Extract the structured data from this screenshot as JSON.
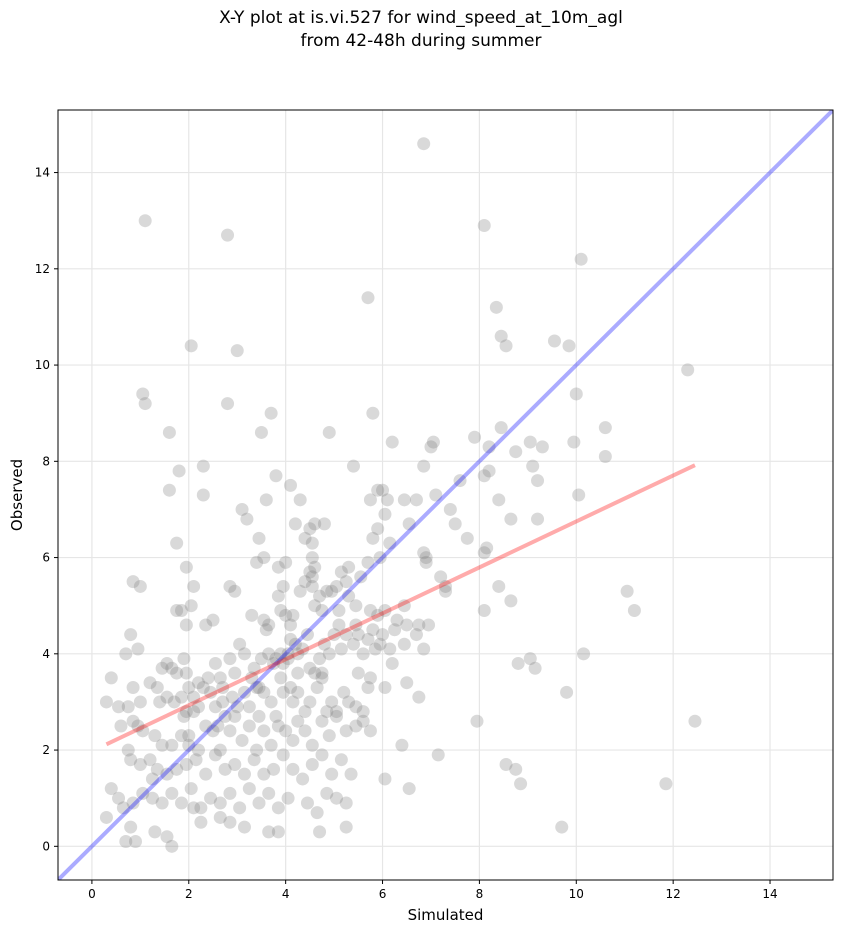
{
  "chart_data": {
    "type": "scatter",
    "title": "X-Y plot at is.vi.527 for wind_speed_at_10m_agl",
    "subtitle": "from 42-48h during summer",
    "xlabel": "Simulated",
    "ylabel": "Observed",
    "xlim": [
      -0.7,
      15.3
    ],
    "ylim": [
      -0.7,
      15.3
    ],
    "xticks": [
      0,
      2,
      4,
      6,
      8,
      10,
      12,
      14
    ],
    "yticks": [
      0,
      2,
      4,
      6,
      8,
      10,
      12,
      14
    ],
    "grid": true,
    "legend": "none",
    "colors": {
      "points": "#808080",
      "identity_line": "#0000ff",
      "regression_line": "#ff0000"
    },
    "identity_line": {
      "x": [
        -0.7,
        15.3
      ],
      "y": [
        -0.7,
        15.3
      ]
    },
    "regression_line": {
      "x": [
        0.3,
        12.45
      ],
      "y": [
        2.12,
        7.92
      ]
    },
    "points": [
      [
        1.1,
        13.0
      ],
      [
        2.8,
        12.7
      ],
      [
        6.85,
        14.6
      ],
      [
        8.1,
        12.9
      ],
      [
        10.1,
        12.2
      ],
      [
        5.7,
        11.4
      ],
      [
        8.35,
        11.2
      ],
      [
        8.45,
        10.6
      ],
      [
        8.55,
        10.4
      ],
      [
        9.55,
        10.5
      ],
      [
        9.85,
        10.4
      ],
      [
        2.05,
        10.4
      ],
      [
        3.0,
        10.3
      ],
      [
        1.05,
        9.4
      ],
      [
        1.1,
        9.2
      ],
      [
        2.8,
        9.2
      ],
      [
        3.7,
        9.0
      ],
      [
        5.8,
        9.0
      ],
      [
        10.0,
        9.4
      ],
      [
        12.3,
        9.9
      ],
      [
        1.6,
        8.6
      ],
      [
        3.5,
        8.6
      ],
      [
        4.9,
        8.6
      ],
      [
        6.2,
        8.4
      ],
      [
        7.0,
        8.3
      ],
      [
        7.05,
        8.4
      ],
      [
        7.9,
        8.5
      ],
      [
        8.2,
        8.3
      ],
      [
        8.45,
        8.7
      ],
      [
        8.75,
        8.2
      ],
      [
        9.05,
        8.4
      ],
      [
        9.3,
        8.3
      ],
      [
        9.95,
        8.4
      ],
      [
        10.6,
        8.7
      ],
      [
        10.6,
        8.1
      ],
      [
        1.8,
        7.8
      ],
      [
        2.3,
        7.9
      ],
      [
        3.8,
        7.7
      ],
      [
        5.4,
        7.9
      ],
      [
        6.85,
        7.9
      ],
      [
        8.1,
        7.7
      ],
      [
        8.2,
        7.8
      ],
      [
        9.1,
        7.9
      ],
      [
        9.2,
        7.6
      ],
      [
        7.6,
        7.6
      ],
      [
        1.6,
        7.4
      ],
      [
        3.6,
        7.2
      ],
      [
        4.1,
        7.5
      ],
      [
        4.3,
        7.2
      ],
      [
        5.75,
        7.2
      ],
      [
        5.9,
        7.4
      ],
      [
        6.0,
        7.4
      ],
      [
        6.1,
        7.2
      ],
      [
        6.45,
        7.2
      ],
      [
        6.7,
        7.2
      ],
      [
        7.1,
        7.3
      ],
      [
        7.4,
        7.0
      ],
      [
        8.4,
        7.2
      ],
      [
        10.05,
        7.3
      ],
      [
        2.3,
        7.3
      ],
      [
        3.1,
        7.0
      ],
      [
        3.2,
        6.8
      ],
      [
        4.2,
        6.7
      ],
      [
        4.5,
        6.6
      ],
      [
        4.6,
        6.7
      ],
      [
        4.8,
        6.7
      ],
      [
        4.4,
        6.4
      ],
      [
        4.55,
        6.3
      ],
      [
        5.9,
        6.6
      ],
      [
        6.05,
        6.9
      ],
      [
        6.55,
        6.7
      ],
      [
        7.5,
        6.7
      ],
      [
        8.65,
        6.8
      ],
      [
        9.2,
        6.8
      ],
      [
        7.75,
        6.4
      ],
      [
        1.75,
        6.3
      ],
      [
        3.45,
        6.4
      ],
      [
        3.55,
        6.0
      ],
      [
        3.4,
        5.9
      ],
      [
        4.0,
        5.9
      ],
      [
        4.55,
        6.0
      ],
      [
        4.6,
        5.8
      ],
      [
        5.3,
        5.8
      ],
      [
        5.55,
        5.6
      ],
      [
        5.7,
        5.9
      ],
      [
        5.95,
        6.0
      ],
      [
        5.8,
        6.4
      ],
      [
        6.85,
        6.1
      ],
      [
        6.9,
        6.0
      ],
      [
        6.9,
        5.9
      ],
      [
        7.2,
        5.6
      ],
      [
        7.3,
        5.4
      ],
      [
        7.3,
        5.3
      ],
      [
        8.15,
        6.2
      ],
      [
        8.1,
        6.1
      ],
      [
        8.4,
        5.4
      ],
      [
        8.65,
        5.1
      ],
      [
        8.1,
        4.9
      ],
      [
        11.05,
        5.3
      ],
      [
        11.2,
        4.9
      ],
      [
        0.85,
        5.5
      ],
      [
        1.0,
        5.4
      ],
      [
        1.95,
        5.8
      ],
      [
        2.1,
        5.4
      ],
      [
        2.05,
        5.0
      ],
      [
        1.75,
        4.9
      ],
      [
        1.85,
        4.9
      ],
      [
        1.95,
        4.6
      ],
      [
        2.35,
        4.6
      ],
      [
        2.5,
        4.7
      ],
      [
        2.85,
        5.4
      ],
      [
        2.95,
        5.3
      ],
      [
        3.3,
        4.8
      ],
      [
        3.55,
        4.7
      ],
      [
        3.65,
        4.6
      ],
      [
        3.85,
        5.8
      ],
      [
        3.85,
        5.2
      ],
      [
        3.9,
        4.9
      ],
      [
        3.95,
        5.4
      ],
      [
        4.1,
        4.6
      ],
      [
        4.0,
        4.8
      ],
      [
        4.15,
        4.8
      ],
      [
        4.3,
        5.3
      ],
      [
        4.4,
        5.5
      ],
      [
        4.5,
        5.7
      ],
      [
        4.55,
        5.6
      ],
      [
        4.55,
        5.4
      ],
      [
        4.7,
        5.2
      ],
      [
        4.75,
        4.9
      ],
      [
        4.85,
        5.3
      ],
      [
        4.95,
        5.3
      ],
      [
        5.05,
        5.4
      ],
      [
        5.15,
        5.7
      ],
      [
        5.25,
        5.5
      ],
      [
        5.3,
        5.2
      ],
      [
        5.45,
        5.0
      ],
      [
        5.45,
        4.6
      ],
      [
        5.75,
        4.9
      ],
      [
        5.9,
        4.8
      ],
      [
        6.05,
        4.9
      ],
      [
        6.3,
        4.7
      ],
      [
        6.45,
        5.0
      ],
      [
        6.5,
        4.6
      ],
      [
        6.75,
        4.6
      ],
      [
        6.95,
        4.6
      ],
      [
        0.8,
        4.4
      ],
      [
        0.7,
        4.0
      ],
      [
        0.95,
        4.1
      ],
      [
        1.45,
        3.7
      ],
      [
        1.55,
        3.8
      ],
      [
        1.65,
        3.7
      ],
      [
        1.75,
        3.6
      ],
      [
        1.9,
        3.9
      ],
      [
        1.95,
        3.6
      ],
      [
        2.0,
        3.3
      ],
      [
        2.2,
        3.4
      ],
      [
        2.4,
        3.5
      ],
      [
        2.3,
        3.3
      ],
      [
        2.55,
        3.8
      ],
      [
        2.65,
        3.5
      ],
      [
        2.7,
        3.3
      ],
      [
        2.85,
        3.9
      ],
      [
        2.95,
        3.6
      ],
      [
        3.05,
        4.2
      ],
      [
        3.15,
        4.0
      ],
      [
        3.3,
        3.5
      ],
      [
        3.4,
        3.3
      ],
      [
        3.5,
        3.9
      ],
      [
        3.6,
        4.5
      ],
      [
        3.65,
        4.0
      ],
      [
        3.75,
        3.8
      ],
      [
        3.8,
        3.9
      ],
      [
        3.9,
        4.0
      ],
      [
        3.95,
        3.8
      ],
      [
        4.05,
        4.0
      ],
      [
        4.1,
        4.3
      ],
      [
        4.2,
        4.2
      ],
      [
        4.25,
        4.0
      ],
      [
        4.35,
        4.1
      ],
      [
        4.45,
        4.4
      ],
      [
        4.5,
        3.7
      ],
      [
        4.6,
        3.6
      ],
      [
        4.7,
        3.9
      ],
      [
        4.75,
        3.6
      ],
      [
        4.8,
        4.2
      ],
      [
        4.9,
        4.0
      ],
      [
        5.0,
        4.4
      ],
      [
        5.1,
        4.6
      ],
      [
        5.15,
        4.1
      ],
      [
        5.25,
        4.4
      ],
      [
        5.4,
        4.2
      ],
      [
        5.5,
        4.4
      ],
      [
        5.6,
        4.0
      ],
      [
        5.7,
        4.3
      ],
      [
        5.8,
        4.5
      ],
      [
        5.85,
        4.1
      ],
      [
        5.95,
        4.2
      ],
      [
        6.0,
        4.4
      ],
      [
        6.15,
        4.1
      ],
      [
        6.25,
        4.5
      ],
      [
        6.45,
        4.2
      ],
      [
        6.7,
        4.4
      ],
      [
        6.85,
        4.1
      ],
      [
        1.35,
        3.3
      ],
      [
        1.4,
        3.0
      ],
      [
        1.55,
        3.1
      ],
      [
        1.7,
        3.0
      ],
      [
        1.85,
        3.1
      ],
      [
        1.95,
        2.8
      ],
      [
        1.9,
        2.7
      ],
      [
        2.1,
        2.8
      ],
      [
        2.2,
        2.9
      ],
      [
        2.45,
        3.2
      ],
      [
        2.55,
        2.9
      ],
      [
        2.7,
        3.0
      ],
      [
        2.75,
        2.7
      ],
      [
        2.9,
        3.1
      ],
      [
        3.0,
        2.9
      ],
      [
        3.15,
        3.2
      ],
      [
        3.25,
        2.9
      ],
      [
        3.45,
        3.3
      ],
      [
        3.55,
        3.2
      ],
      [
        3.7,
        3.0
      ],
      [
        3.8,
        2.7
      ],
      [
        3.9,
        3.5
      ],
      [
        3.95,
        3.2
      ],
      [
        4.1,
        3.3
      ],
      [
        4.15,
        3.0
      ],
      [
        4.25,
        3.2
      ],
      [
        4.4,
        2.8
      ],
      [
        4.5,
        3.0
      ],
      [
        4.65,
        3.3
      ],
      [
        4.75,
        3.5
      ],
      [
        4.85,
        2.8
      ],
      [
        4.95,
        3.0
      ],
      [
        5.05,
        2.8
      ],
      [
        5.2,
        3.2
      ],
      [
        5.3,
        3.0
      ],
      [
        5.45,
        2.9
      ],
      [
        5.6,
        2.8
      ],
      [
        5.7,
        3.3
      ],
      [
        5.75,
        3.5
      ],
      [
        6.05,
        3.3
      ],
      [
        6.5,
        3.4
      ],
      [
        6.75,
        3.1
      ],
      [
        0.3,
        3.0
      ],
      [
        0.4,
        3.5
      ],
      [
        0.55,
        2.9
      ],
      [
        0.75,
        2.9
      ],
      [
        0.85,
        3.3
      ],
      [
        1.0,
        3.0
      ],
      [
        1.2,
        3.4
      ],
      [
        0.6,
        2.5
      ],
      [
        0.85,
        2.6
      ],
      [
        0.95,
        2.5
      ],
      [
        1.05,
        2.4
      ],
      [
        1.3,
        2.3
      ],
      [
        1.45,
        2.1
      ],
      [
        1.65,
        2.1
      ],
      [
        1.85,
        2.3
      ],
      [
        2.0,
        2.1
      ],
      [
        2.2,
        2.0
      ],
      [
        2.35,
        2.5
      ],
      [
        2.5,
        2.4
      ],
      [
        2.65,
        2.0
      ],
      [
        2.85,
        2.4
      ],
      [
        2.95,
        2.7
      ],
      [
        3.1,
        2.2
      ],
      [
        3.25,
        2.5
      ],
      [
        3.4,
        2.0
      ],
      [
        3.55,
        2.4
      ],
      [
        3.7,
        2.1
      ],
      [
        3.85,
        2.5
      ],
      [
        4.0,
        2.4
      ],
      [
        4.15,
        2.2
      ],
      [
        4.25,
        2.6
      ],
      [
        4.4,
        2.4
      ],
      [
        4.55,
        2.1
      ],
      [
        4.75,
        2.6
      ],
      [
        4.9,
        2.3
      ],
      [
        5.05,
        2.7
      ],
      [
        5.25,
        2.4
      ],
      [
        5.45,
        2.5
      ],
      [
        5.6,
        2.6
      ],
      [
        5.75,
        2.4
      ],
      [
        6.4,
        2.1
      ],
      [
        7.15,
        1.9
      ],
      [
        7.95,
        2.6
      ],
      [
        8.8,
        3.8
      ],
      [
        9.05,
        3.9
      ],
      [
        9.15,
        3.7
      ],
      [
        9.8,
        3.2
      ],
      [
        10.15,
        4.0
      ],
      [
        12.45,
        2.6
      ],
      [
        0.75,
        2.0
      ],
      [
        0.8,
        1.8
      ],
      [
        1.0,
        1.7
      ],
      [
        1.2,
        1.8
      ],
      [
        1.35,
        1.6
      ],
      [
        1.55,
        1.5
      ],
      [
        1.75,
        1.6
      ],
      [
        1.95,
        1.7
      ],
      [
        2.15,
        1.8
      ],
      [
        2.35,
        1.5
      ],
      [
        2.55,
        1.9
      ],
      [
        2.75,
        1.6
      ],
      [
        2.95,
        1.7
      ],
      [
        3.15,
        1.5
      ],
      [
        3.35,
        1.8
      ],
      [
        3.55,
        1.5
      ],
      [
        3.75,
        1.6
      ],
      [
        3.95,
        1.9
      ],
      [
        4.15,
        1.6
      ],
      [
        4.35,
        1.4
      ],
      [
        4.55,
        1.7
      ],
      [
        4.75,
        1.9
      ],
      [
        4.95,
        1.5
      ],
      [
        5.15,
        1.8
      ],
      [
        5.35,
        1.5
      ],
      [
        6.05,
        1.4
      ],
      [
        6.55,
        1.2
      ],
      [
        8.55,
        1.7
      ],
      [
        8.75,
        1.6
      ],
      [
        8.85,
        1.3
      ],
      [
        11.85,
        1.3
      ],
      [
        0.4,
        1.2
      ],
      [
        0.55,
        1.0
      ],
      [
        0.65,
        0.8
      ],
      [
        0.85,
        0.9
      ],
      [
        1.05,
        1.1
      ],
      [
        1.25,
        1.0
      ],
      [
        1.45,
        0.9
      ],
      [
        1.65,
        1.1
      ],
      [
        1.85,
        0.9
      ],
      [
        2.05,
        1.2
      ],
      [
        2.25,
        0.8
      ],
      [
        2.45,
        1.0
      ],
      [
        2.65,
        0.9
      ],
      [
        2.85,
        1.1
      ],
      [
        3.05,
        0.8
      ],
      [
        3.25,
        1.2
      ],
      [
        3.45,
        0.9
      ],
      [
        3.65,
        1.1
      ],
      [
        3.85,
        0.8
      ],
      [
        4.05,
        1.0
      ],
      [
        4.45,
        0.9
      ],
      [
        4.65,
        0.7
      ],
      [
        4.85,
        1.1
      ],
      [
        5.05,
        1.0
      ],
      [
        5.25,
        0.9
      ],
      [
        0.3,
        0.6
      ],
      [
        0.7,
        0.1
      ],
      [
        0.8,
        0.4
      ],
      [
        0.9,
        0.1
      ],
      [
        1.3,
        0.3
      ],
      [
        1.55,
        0.2
      ],
      [
        1.65,
        0.0
      ],
      [
        2.25,
        0.5
      ],
      [
        2.65,
        0.6
      ],
      [
        2.85,
        0.5
      ],
      [
        3.15,
        0.4
      ],
      [
        3.65,
        0.3
      ],
      [
        3.85,
        0.3
      ],
      [
        4.7,
        0.3
      ],
      [
        5.25,
        0.4
      ],
      [
        9.7,
        0.4
      ],
      [
        2.1,
        3.1
      ],
      [
        2.6,
        2.5
      ],
      [
        3.35,
        3.7
      ],
      [
        4.05,
        3.9
      ],
      [
        4.6,
        5.0
      ],
      [
        5.1,
        4.9
      ],
      [
        5.5,
        3.6
      ],
      [
        6.2,
        3.8
      ],
      [
        2.0,
        2.3
      ],
      [
        1.25,
        1.4
      ],
      [
        2.1,
        0.8
      ],
      [
        6.15,
        6.3
      ],
      [
        3.45,
        2.7
      ],
      [
        4.25,
        3.6
      ]
    ]
  }
}
